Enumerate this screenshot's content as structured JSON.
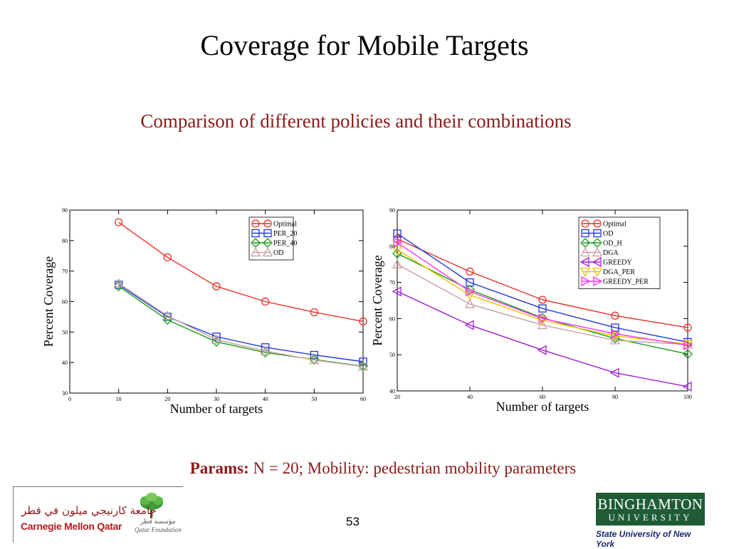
{
  "slide": {
    "title": "Coverage for Mobile Targets",
    "subtitle": "Comparison of different policies and their combinations",
    "params_label": "Params:",
    "params_text": "N = 20; Mobility: pedestrian mobility parameters",
    "slide_number": "53"
  },
  "logos": {
    "cmq_arabic": "جامعة كارنيجي ميلون في قطر",
    "cmq_name": "Carnegie Mellon Qatar",
    "qf_arabic": "مؤسسة قطر",
    "qf_name": "Qatar Foundation",
    "bu_name": "BINGHAMTON",
    "bu_univ": "UNIVERSITY",
    "bu_suny": "State University of New York",
    "bu_color": "#1f5c36"
  },
  "chart_data": [
    {
      "type": "line",
      "xlabel": "Number of targets",
      "ylabel": "Percent Coverage",
      "xlim": [
        0,
        60
      ],
      "ylim": [
        30,
        90
      ],
      "xticks": [
        0,
        10,
        20,
        30,
        40,
        50,
        60
      ],
      "yticks": [
        30,
        40,
        50,
        60,
        70,
        80,
        90
      ],
      "legend_position": "top-right",
      "x": [
        10,
        20,
        30,
        40,
        50,
        60
      ],
      "series": [
        {
          "name": "Optimal",
          "color": "#e8312a",
          "marker": "circle",
          "values": [
            86,
            74.5,
            65,
            60,
            56.5,
            53.5
          ]
        },
        {
          "name": "PER_20",
          "color": "#2136d8",
          "marker": "square",
          "values": [
            65.5,
            55,
            48.5,
            45,
            42.5,
            40.3
          ]
        },
        {
          "name": "PER_40",
          "color": "#1a9a1a",
          "marker": "diamond",
          "values": [
            65,
            54,
            46.8,
            43.3,
            41,
            38.8
          ]
        },
        {
          "name": "OD",
          "color": "#c9a0a0",
          "marker": "triangle-up",
          "values": [
            66,
            55.3,
            47.5,
            43.8,
            40.8,
            38.7
          ]
        }
      ]
    },
    {
      "type": "line",
      "xlabel": "Number of targets",
      "ylabel": "Percent Coverage",
      "xlim": [
        20,
        100
      ],
      "ylim": [
        40,
        90
      ],
      "xticks": [
        20,
        40,
        60,
        80,
        100
      ],
      "yticks": [
        40,
        50,
        60,
        70,
        80,
        90
      ],
      "legend_position": "top-right",
      "x": [
        20,
        40,
        60,
        80,
        100
      ],
      "series": [
        {
          "name": "Optimal",
          "color": "#e8312a",
          "marker": "circle",
          "values": [
            82,
            73,
            65.2,
            60.8,
            57.5
          ]
        },
        {
          "name": "OD",
          "color": "#2136d8",
          "marker": "square",
          "values": [
            83.5,
            70,
            62.8,
            57.5,
            53.5
          ]
        },
        {
          "name": "OD_H",
          "color": "#1a9a1a",
          "marker": "diamond",
          "values": [
            78,
            68,
            60.2,
            54.5,
            50.2
          ]
        },
        {
          "name": "DGA",
          "color": "#c9a0a0",
          "marker": "triangle-up",
          "values": [
            75,
            64,
            58.2,
            54,
            52.8
          ]
        },
        {
          "name": "GREEDY",
          "color": "#a020d0",
          "marker": "triangle-left",
          "values": [
            67.5,
            58.2,
            51.3,
            45,
            41.2
          ]
        },
        {
          "name": "DGA_PER",
          "color": "#f0c000",
          "marker": "triangle-down",
          "values": [
            79,
            66.5,
            59.5,
            55.2,
            53
          ]
        },
        {
          "name": "GREEDY_PER",
          "color": "#ff30ff",
          "marker": "triangle-right",
          "values": [
            81,
            67.5,
            60,
            55.8,
            52.6
          ]
        }
      ]
    }
  ]
}
